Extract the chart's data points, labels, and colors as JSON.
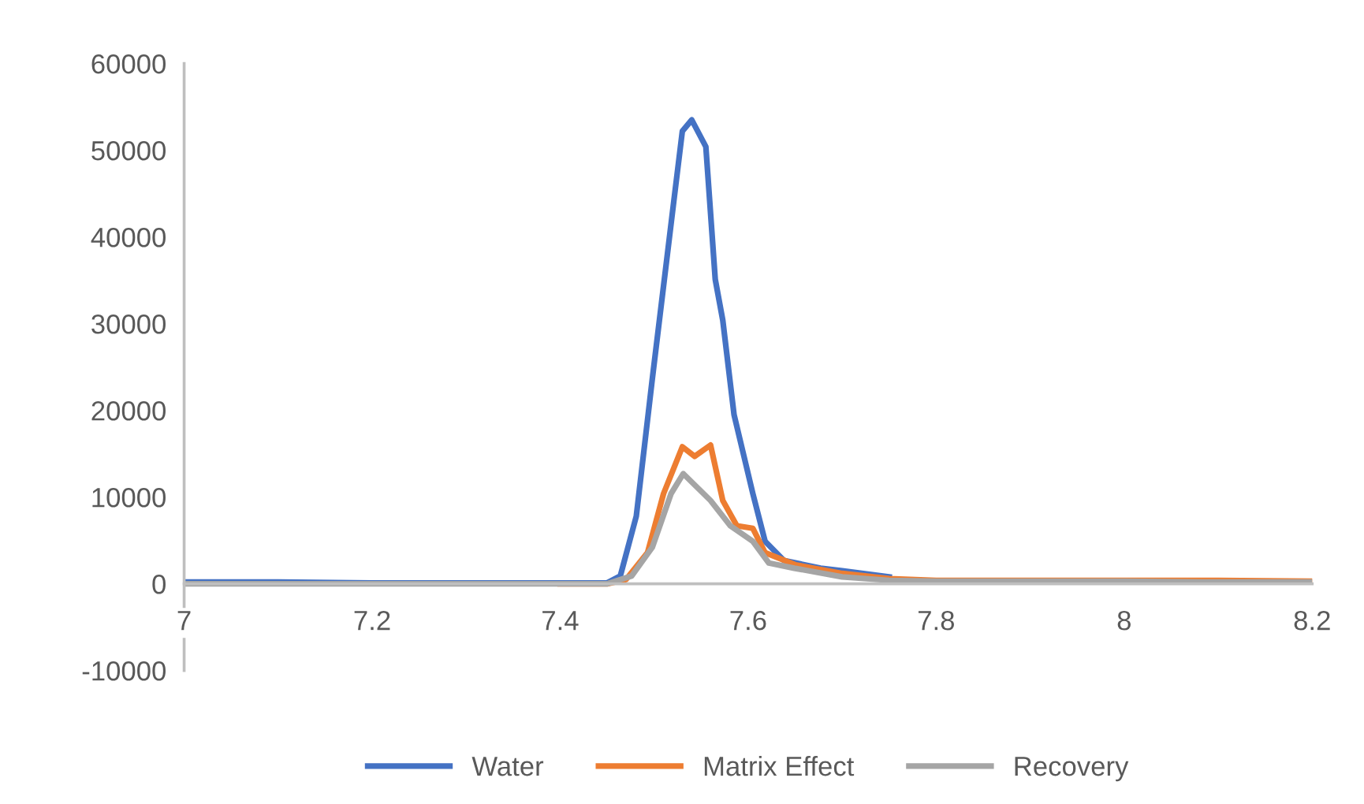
{
  "chart_data": {
    "type": "line",
    "xlim": [
      7,
      8.2
    ],
    "ylim": [
      -10000,
      60000
    ],
    "xticks": [
      7,
      7.2,
      7.4,
      7.6,
      7.8,
      8,
      8.2
    ],
    "yticks": [
      -10000,
      0,
      10000,
      20000,
      30000,
      40000,
      50000,
      60000
    ],
    "grid": false,
    "legend": "bottom",
    "marker": "none",
    "line_style": "solid",
    "series": [
      {
        "name": "Water",
        "color": "#4472c4",
        "x": [
          7,
          7.1,
          7.2,
          7.3,
          7.4,
          7.45,
          7.464,
          7.481,
          7.498,
          7.521,
          7.53,
          7.54,
          7.555,
          7.565,
          7.573,
          7.585,
          7.605,
          7.618,
          7.638,
          7.677,
          7.7,
          7.75
        ],
        "values": [
          200,
          200,
          100,
          100,
          100,
          100,
          900,
          7800,
          23600,
          44200,
          52200,
          53500,
          50400,
          35100,
          30400,
          19500,
          10400,
          4900,
          2700,
          1800,
          1500,
          800
        ]
      },
      {
        "name": "Matrix Effect",
        "color": "#ed7d31",
        "x": [
          7.4,
          7.45,
          7.47,
          7.493,
          7.51,
          7.53,
          7.543,
          7.56,
          7.573,
          7.588,
          7.605,
          7.618,
          7.65,
          7.7,
          7.75,
          7.8,
          7.9,
          8,
          8.1,
          8.2
        ],
        "values": [
          0,
          0,
          500,
          3600,
          10400,
          15800,
          14700,
          16000,
          9600,
          6700,
          6400,
          3600,
          2200,
          1200,
          600,
          400,
          400,
          400,
          400,
          300
        ]
      },
      {
        "name": "Recovery",
        "color": "#a5a5a5",
        "x": [
          7,
          7.1,
          7.2,
          7.3,
          7.4,
          7.45,
          7.476,
          7.498,
          7.518,
          7.531,
          7.56,
          7.581,
          7.605,
          7.622,
          7.649,
          7.7,
          7.75,
          7.8,
          7.9,
          8,
          8.1,
          8.2
        ],
        "values": [
          0,
          0,
          0,
          0,
          0,
          0,
          900,
          4200,
          10400,
          12700,
          9600,
          6700,
          4900,
          2400,
          1800,
          800,
          400,
          300,
          300,
          300,
          200,
          200
        ]
      }
    ]
  }
}
